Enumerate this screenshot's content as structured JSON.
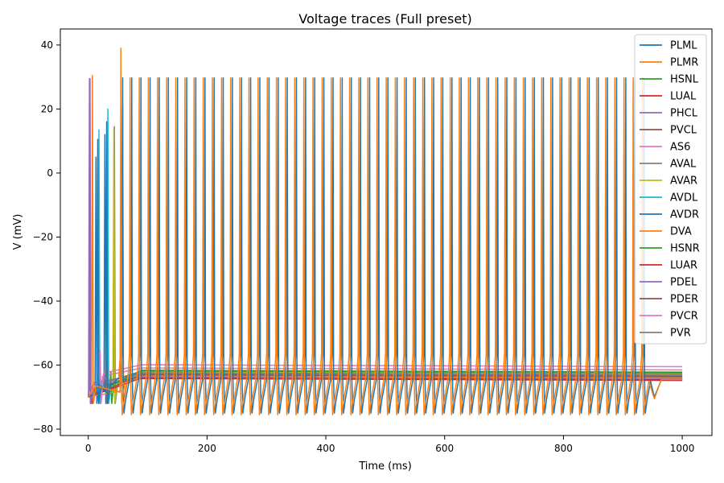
{
  "chart_data": {
    "type": "line",
    "title": "Voltage traces (Full preset)",
    "xlabel": "Time (ms)",
    "ylabel": "V (mV)",
    "xlim": [
      -47,
      1050
    ],
    "ylim": [
      -82,
      45
    ],
    "xticks": [
      0,
      200,
      400,
      600,
      800,
      1000
    ],
    "yticks": [
      -80,
      -60,
      -40,
      -20,
      0,
      20,
      40
    ],
    "grid": false,
    "legend_position": "top-right",
    "series": [
      {
        "name": "PLML",
        "color": "#1f77b4",
        "rest": -64.5,
        "trough": -75,
        "spikes": {
          "start": 57,
          "interval": 15.4,
          "end": 945,
          "peak": 29.7,
          "phase": 0.9
        },
        "early": [
          {
            "t": 16,
            "v": 10.5
          },
          {
            "t": 31,
            "v": 16
          }
        ]
      },
      {
        "name": "PLMR",
        "color": "#ff7f0e",
        "rest": -64.5,
        "trough": -75.5,
        "spikes": {
          "start": 55,
          "interval": 15.4,
          "end": 945,
          "peak": 29.7,
          "phase": 0
        },
        "early": [
          {
            "t": 7,
            "v": 30.5
          },
          {
            "t": 55,
            "v": 39
          }
        ]
      },
      {
        "name": "HSNL",
        "color": "#2ca02c",
        "rest": -62.5,
        "early": [
          {
            "t": 38,
            "v": -62
          }
        ]
      },
      {
        "name": "LUAL",
        "color": "#d62728",
        "rest": -64.8,
        "early": [
          {
            "t": 5,
            "v": -62
          }
        ]
      },
      {
        "name": "PHCL",
        "color": "#9467bd",
        "rest": -64.2,
        "early": [
          {
            "t": 2,
            "v": 29.5
          }
        ]
      },
      {
        "name": "PVCL",
        "color": "#8c564b",
        "rest": -63.8,
        "early": []
      },
      {
        "name": "AS6",
        "color": "#e377c2",
        "rest": -61.5,
        "early": [
          {
            "t": 18,
            "v": -55
          }
        ]
      },
      {
        "name": "AVAL",
        "color": "#7f7f7f",
        "rest": -63.2,
        "early": [
          {
            "t": 44,
            "v": 14.5
          }
        ]
      },
      {
        "name": "AVAR",
        "color": "#bcbd22",
        "rest": -62.8,
        "early": [
          {
            "t": 43,
            "v": 14
          },
          {
            "t": 55,
            "v": 18
          }
        ]
      },
      {
        "name": "AVDL",
        "color": "#17becf",
        "rest": -63.8,
        "early": [
          {
            "t": 18,
            "v": 13.5
          },
          {
            "t": 33,
            "v": 20
          }
        ]
      },
      {
        "name": "AVDR",
        "color": "#1f77b4",
        "rest": -64.0,
        "early": [
          {
            "t": 13,
            "v": 5
          },
          {
            "t": 28,
            "v": 12
          }
        ]
      },
      {
        "name": "DVA",
        "color": "#ff7f0e",
        "rest": -64.0,
        "early": [
          {
            "t": 58,
            "v": 20.5
          }
        ]
      },
      {
        "name": "HSNR",
        "color": "#2ca02c",
        "rest": -62.2,
        "early": []
      },
      {
        "name": "LUAR",
        "color": "#d62728",
        "rest": -64.6,
        "early": []
      },
      {
        "name": "PDEL",
        "color": "#9467bd",
        "rest": -63.5,
        "early": [
          {
            "t": 3,
            "v": 29.5
          }
        ]
      },
      {
        "name": "PDER",
        "color": "#8c564b",
        "rest": -63.6,
        "early": []
      },
      {
        "name": "PVCR",
        "color": "#e377c2",
        "rest": -60.5,
        "early": [
          {
            "t": 20,
            "v": -55.5
          }
        ]
      },
      {
        "name": "PVR",
        "color": "#7f7f7f",
        "rest": -63.0,
        "early": [
          {
            "t": 30,
            "v": -58
          }
        ]
      }
    ]
  }
}
